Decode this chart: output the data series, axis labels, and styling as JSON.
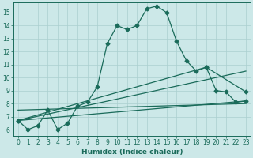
{
  "xlabel": "Humidex (Indice chaleur)",
  "ylabel": "",
  "bg_color": "#cce8e8",
  "grid_color": "#aacfcf",
  "line_color": "#1a6b5a",
  "xlim": [
    -0.5,
    23.5
  ],
  "ylim": [
    5.5,
    15.8
  ],
  "xticks": [
    0,
    1,
    2,
    3,
    4,
    5,
    6,
    7,
    8,
    9,
    10,
    11,
    12,
    13,
    14,
    15,
    16,
    17,
    18,
    19,
    20,
    21,
    22,
    23
  ],
  "yticks": [
    6,
    7,
    8,
    9,
    10,
    11,
    12,
    13,
    14,
    15
  ],
  "line1_x": [
    0,
    1,
    2,
    3,
    4,
    5,
    6,
    7,
    8,
    9,
    10,
    11,
    12,
    13,
    14,
    15,
    16,
    17,
    18,
    19,
    20,
    21,
    22,
    23
  ],
  "line1_y": [
    6.7,
    6.0,
    6.3,
    7.5,
    6.0,
    6.5,
    7.8,
    8.1,
    9.3,
    12.6,
    14.0,
    13.7,
    14.0,
    15.3,
    15.5,
    15.0,
    12.8,
    11.3,
    10.5,
    10.8,
    9.0,
    8.9,
    8.1,
    8.2
  ],
  "line2_x": [
    0,
    23
  ],
  "line2_y": [
    6.7,
    10.5
  ],
  "line3_x": [
    0,
    19,
    23
  ],
  "line3_y": [
    6.7,
    10.8,
    8.9
  ],
  "line4_x": [
    0,
    23
  ],
  "line4_y": [
    6.7,
    8.2
  ],
  "line5_x": [
    0,
    23
  ],
  "line5_y": [
    7.5,
    8.0
  ]
}
